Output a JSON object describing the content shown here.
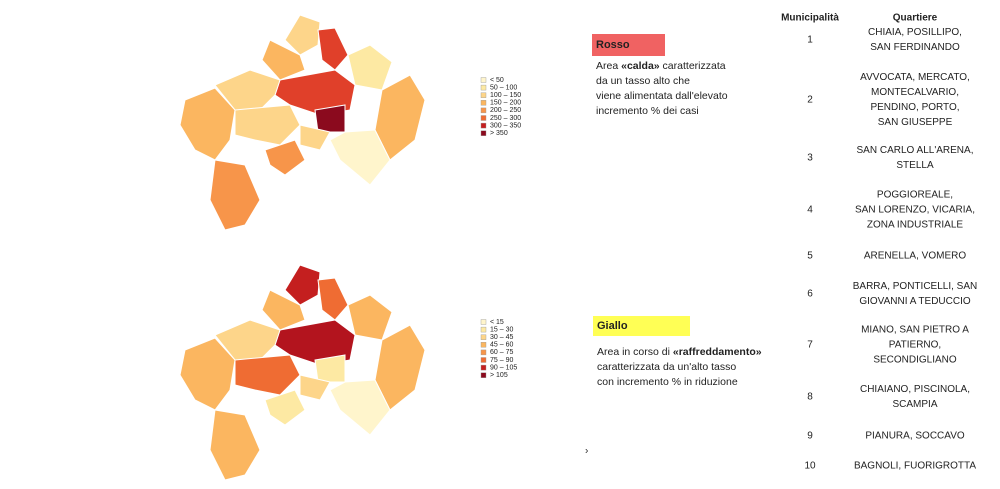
{
  "maps": [
    {
      "legend": [
        "< 50",
        "50 – 100",
        "100 – 150",
        "150 – 200",
        "200 – 250",
        "250 – 300",
        "300 – 350",
        "> 350"
      ]
    },
    {
      "legend": [
        "< 15",
        "15 – 30",
        "30 – 45",
        "45 – 60",
        "60 – 75",
        "75 – 90",
        "90 – 105",
        "> 105"
      ]
    }
  ],
  "boxes": [
    {
      "title": "Rosso",
      "lines": [
        [
          {
            "text": "Area "
          },
          {
            "text": "«calda»",
            "bold": true
          },
          {
            "text": " caratterizzata"
          }
        ],
        [
          {
            "text": "da un tasso alto che"
          }
        ],
        [
          {
            "text": "viene alimentata dall'elevato"
          }
        ],
        [
          {
            "text": "incremento % dei casi"
          }
        ]
      ]
    },
    {
      "title": "Giallo",
      "lines": [
        [
          {
            "text": "Area in corso di "
          },
          {
            "text": "«raffreddamento»",
            "bold": true
          }
        ],
        [
          {
            "text": "caratterizzata da un'alto tasso"
          }
        ],
        [
          {
            "text": "con incremento % in riduzione"
          }
        ]
      ]
    }
  ],
  "page_marker": "›",
  "table": {
    "header": [
      "Municipalità",
      "Quartiere"
    ],
    "rows": [
      [
        1,
        [
          "CHIAIA, POSILLIPO,",
          "SAN FERDINANDO"
        ]
      ],
      [
        2,
        [
          "AVVOCATA, MERCATO,",
          "MONTECALVARIO,",
          "PENDINO, PORTO,",
          "SAN GIUSEPPE"
        ]
      ],
      [
        3,
        [
          "SAN CARLO ALL'ARENA,",
          "STELLA"
        ]
      ],
      [
        4,
        [
          "POGGIOREALE,",
          "SAN LORENZO, VICARIA,",
          "ZONA INDUSTRIALE"
        ]
      ],
      [
        5,
        [
          "ARENELLA, VOMERO"
        ]
      ],
      [
        6,
        [
          "BARRA, PONTICELLI, SAN",
          "GIOVANNI A TEDUCCIO"
        ]
      ],
      [
        7,
        [
          "MIANO, SAN PIETRO A",
          "PATIERNO,",
          "SECONDIGLIANO"
        ]
      ],
      [
        8,
        [
          "CHIAIANO, PISCINOLA,",
          "SCAMPIA"
        ]
      ],
      [
        9,
        [
          "PIANURA, SOCCAVO"
        ]
      ],
      [
        10,
        [
          "BAGNOLI, FUORIGROTTA"
        ]
      ]
    ]
  }
}
